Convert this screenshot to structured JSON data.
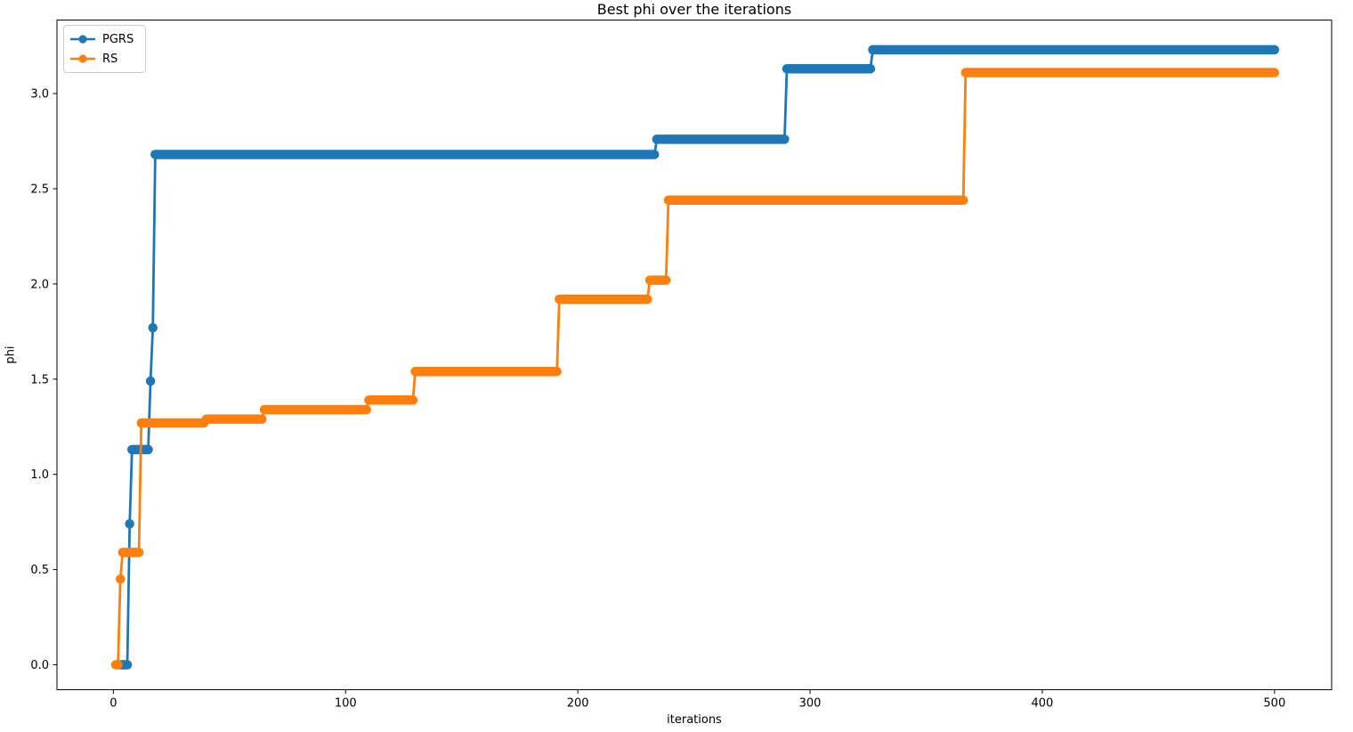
{
  "chart_data": {
    "type": "line",
    "title": "Best phi over the iterations",
    "xlabel": "iterations",
    "ylabel": "phi",
    "x_ticks": [
      0,
      100,
      200,
      300,
      400,
      500
    ],
    "y_ticks": [
      "0.0",
      "0.5",
      "1.0",
      "1.5",
      "2.0",
      "2.5",
      "3.0"
    ],
    "xlim": [
      -24.3,
      524.6
    ],
    "ylim": [
      -0.131,
      3.386
    ],
    "grid": false,
    "legend_position": "upper left",
    "series": [
      {
        "name": "PGRS",
        "color": "#1f77b4",
        "marker": "o",
        "levels": [
          {
            "x_start": 3,
            "x_end": 6,
            "phi": 0.0
          },
          {
            "x_start": 7,
            "x_end": 7,
            "phi": 0.74
          },
          {
            "x_start": 8,
            "x_end": 15,
            "phi": 1.13
          },
          {
            "x_start": 16,
            "x_end": 16,
            "phi": 1.49
          },
          {
            "x_start": 17,
            "x_end": 17,
            "phi": 1.77
          },
          {
            "x_start": 18,
            "x_end": 233,
            "phi": 2.68
          },
          {
            "x_start": 234,
            "x_end": 289,
            "phi": 2.76
          },
          {
            "x_start": 290,
            "x_end": 326,
            "phi": 3.13
          },
          {
            "x_start": 327,
            "x_end": 500,
            "phi": 3.23
          }
        ]
      },
      {
        "name": "RS",
        "color": "#ff7f0e",
        "marker": "o",
        "levels": [
          {
            "x_start": 1,
            "x_end": 2,
            "phi": 0.0
          },
          {
            "x_start": 3,
            "x_end": 3,
            "phi": 0.45
          },
          {
            "x_start": 4,
            "x_end": 11,
            "phi": 0.59
          },
          {
            "x_start": 12,
            "x_end": 39,
            "phi": 1.27
          },
          {
            "x_start": 40,
            "x_end": 64,
            "phi": 1.29
          },
          {
            "x_start": 65,
            "x_end": 109,
            "phi": 1.34
          },
          {
            "x_start": 110,
            "x_end": 129,
            "phi": 1.39
          },
          {
            "x_start": 130,
            "x_end": 191,
            "phi": 1.54
          },
          {
            "x_start": 192,
            "x_end": 230,
            "phi": 1.92
          },
          {
            "x_start": 231,
            "x_end": 238,
            "phi": 2.02
          },
          {
            "x_start": 239,
            "x_end": 366,
            "phi": 2.44
          },
          {
            "x_start": 367,
            "x_end": 500,
            "phi": 3.11
          }
        ]
      }
    ]
  }
}
